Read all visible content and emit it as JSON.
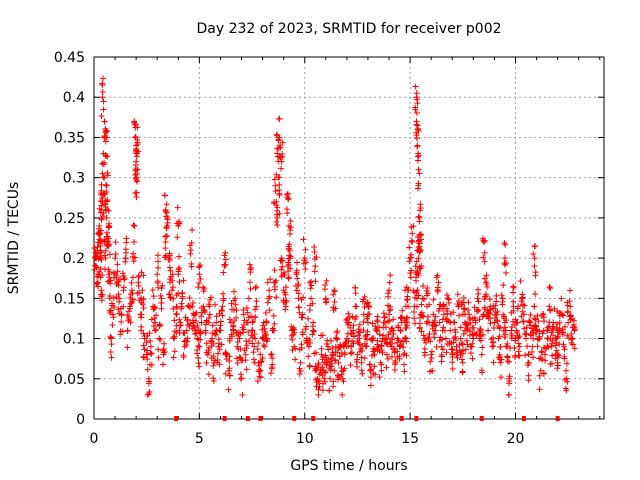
{
  "chart_data": {
    "type": "scatter",
    "title": "Day 232 of 2023, SRMTID for receiver p002",
    "xlabel": "GPS time / hours",
    "ylabel": "SRMTID / TECUs",
    "xlim": [
      0,
      24.2
    ],
    "ylim": [
      0,
      0.45
    ],
    "x_ticks": [
      0,
      5,
      10,
      15,
      20
    ],
    "x_tick_labels": [
      "0",
      "5",
      "10",
      "15",
      "20"
    ],
    "y_ticks": [
      0,
      0.05,
      0.1,
      0.15,
      0.2,
      0.25,
      0.3,
      0.35,
      0.4,
      0.45
    ],
    "y_tick_labels": [
      "0",
      "0.05",
      "0.1",
      "0.15",
      "0.2",
      "0.25",
      "0.3",
      "0.35",
      "0.4",
      "0.45"
    ],
    "grid": true,
    "marker": "plus",
    "color": "#ff0000",
    "legend": "none",
    "series": [
      {
        "name": "SRMTID",
        "x": [
          0.05,
          0.1,
          0.15,
          0.2,
          0.25,
          0.3,
          0.35,
          0.4,
          0.45,
          0.5,
          0.55,
          0.6,
          0.65,
          0.7,
          0.75,
          0.8,
          0.9,
          1.0,
          1.1,
          1.2,
          1.3,
          1.4,
          1.5,
          1.6,
          1.7,
          1.8,
          1.9,
          2.0,
          2.05,
          2.1,
          2.2,
          2.3,
          2.4,
          2.5,
          2.6,
          2.7,
          2.8,
          2.9,
          3.0,
          3.1,
          3.2,
          3.3,
          3.4,
          3.5,
          3.6,
          3.7,
          3.8,
          3.9,
          4.0,
          4.1,
          4.2,
          4.3,
          4.4,
          4.5,
          4.6,
          4.7,
          4.8,
          4.9,
          5.0,
          5.1,
          5.2,
          5.3,
          5.4,
          5.5,
          5.6,
          5.7,
          5.8,
          5.9,
          6.0,
          6.1,
          6.2,
          6.3,
          6.4,
          6.5,
          6.6,
          6.7,
          6.8,
          6.9,
          7.0,
          7.1,
          7.2,
          7.3,
          7.4,
          7.5,
          7.6,
          7.7,
          7.8,
          7.9,
          8.0,
          8.1,
          8.2,
          8.3,
          8.4,
          8.5,
          8.6,
          8.7,
          8.8,
          8.9,
          9.0,
          9.1,
          9.2,
          9.3,
          9.4,
          9.5,
          9.6,
          9.7,
          9.8,
          9.9,
          10.0,
          10.1,
          10.2,
          10.3,
          10.4,
          10.5,
          10.6,
          10.7,
          10.8,
          10.9,
          11.0,
          11.1,
          11.2,
          11.3,
          11.4,
          11.5,
          11.6,
          11.7,
          11.8,
          11.9,
          12.0,
          12.1,
          12.2,
          12.3,
          12.4,
          12.5,
          12.6,
          12.7,
          12.8,
          12.9,
          13.0,
          13.1,
          13.2,
          13.3,
          13.4,
          13.5,
          13.6,
          13.7,
          13.8,
          13.9,
          14.0,
          14.1,
          14.2,
          14.3,
          14.4,
          14.5,
          14.6,
          14.7,
          14.8,
          14.9,
          15.0,
          15.1,
          15.2,
          15.3,
          15.35,
          15.4,
          15.5,
          15.6,
          15.7,
          15.8,
          15.9,
          16.0,
          16.1,
          16.2,
          16.3,
          16.4,
          16.5,
          16.6,
          16.7,
          16.8,
          16.9,
          17.0,
          17.1,
          17.2,
          17.3,
          17.4,
          17.5,
          17.6,
          17.7,
          17.8,
          17.9,
          18.0,
          18.1,
          18.2,
          18.3,
          18.4,
          18.5,
          18.6,
          18.7,
          18.8,
          18.9,
          19.0,
          19.1,
          19.2,
          19.3,
          19.4,
          19.5,
          19.6,
          19.7,
          19.8,
          19.9,
          20.0,
          20.1,
          20.2,
          20.3,
          20.4,
          20.5,
          20.6,
          20.7,
          20.8,
          20.9,
          21.0,
          21.1,
          21.2,
          21.3,
          21.4,
          21.5,
          21.6,
          21.7,
          21.8,
          21.9,
          22.0,
          22.1,
          22.2,
          22.3,
          22.4,
          22.5,
          22.6,
          22.7,
          22.8,
          0.4,
          0.5,
          0.6,
          1.95,
          2.0,
          8.8,
          8.9,
          9.2,
          15.3,
          15.3,
          15.35,
          15.4,
          15.45,
          0.3,
          0.35,
          0.6,
          0.7,
          2.0,
          3.4,
          8.6,
          8.7,
          15.4,
          15.5,
          18.5,
          3.6,
          4.0,
          5.0,
          9.3,
          10.5,
          11.0,
          11.4,
          13.0,
          14.0,
          14.8,
          17.5,
          19.5,
          20.9,
          22.0
        ],
        "y": [
          0.2,
          0.19,
          0.21,
          0.18,
          0.24,
          0.2,
          0.16,
          0.27,
          0.33,
          0.28,
          0.2,
          0.25,
          0.22,
          0.18,
          0.15,
          0.1,
          0.13,
          0.2,
          0.17,
          0.15,
          0.13,
          0.16,
          0.2,
          0.11,
          0.14,
          0.16,
          0.22,
          0.3,
          0.33,
          0.17,
          0.13,
          0.16,
          0.1,
          0.08,
          0.05,
          0.09,
          0.14,
          0.12,
          0.18,
          0.1,
          0.15,
          0.08,
          0.22,
          0.25,
          0.17,
          0.16,
          0.1,
          0.13,
          0.18,
          0.12,
          0.15,
          0.09,
          0.11,
          0.14,
          0.21,
          0.12,
          0.13,
          0.1,
          0.09,
          0.12,
          0.14,
          0.11,
          0.08,
          0.13,
          0.1,
          0.07,
          0.12,
          0.09,
          0.11,
          0.14,
          0.19,
          0.08,
          0.06,
          0.12,
          0.11,
          0.15,
          0.09,
          0.1,
          0.05,
          0.13,
          0.08,
          0.12,
          0.17,
          0.11,
          0.09,
          0.14,
          0.07,
          0.06,
          0.1,
          0.09,
          0.12,
          0.15,
          0.08,
          0.11,
          0.17,
          0.25,
          0.28,
          0.2,
          0.16,
          0.14,
          0.19,
          0.23,
          0.11,
          0.09,
          0.18,
          0.15,
          0.07,
          0.13,
          0.2,
          0.1,
          0.09,
          0.15,
          0.12,
          0.06,
          0.05,
          0.04,
          0.08,
          0.06,
          0.07,
          0.09,
          0.05,
          0.08,
          0.06,
          0.1,
          0.07,
          0.09,
          0.05,
          0.08,
          0.1,
          0.12,
          0.09,
          0.11,
          0.14,
          0.08,
          0.1,
          0.07,
          0.13,
          0.09,
          0.12,
          0.06,
          0.1,
          0.08,
          0.11,
          0.09,
          0.07,
          0.1,
          0.12,
          0.08,
          0.13,
          0.09,
          0.11,
          0.07,
          0.1,
          0.09,
          0.12,
          0.08,
          0.1,
          0.14,
          0.2,
          0.22,
          0.14,
          0.18,
          0.16,
          0.2,
          0.13,
          0.15,
          0.1,
          0.14,
          0.12,
          0.08,
          0.13,
          0.11,
          0.16,
          0.12,
          0.09,
          0.13,
          0.1,
          0.15,
          0.11,
          0.08,
          0.12,
          0.09,
          0.14,
          0.1,
          0.07,
          0.12,
          0.11,
          0.13,
          0.09,
          0.1,
          0.12,
          0.15,
          0.1,
          0.08,
          0.13,
          0.17,
          0.11,
          0.14,
          0.09,
          0.12,
          0.13,
          0.1,
          0.07,
          0.15,
          0.12,
          0.09,
          0.05,
          0.11,
          0.14,
          0.1,
          0.12,
          0.09,
          0.15,
          0.13,
          0.1,
          0.07,
          0.12,
          0.09,
          0.14,
          0.11,
          0.1,
          0.06,
          0.13,
          0.08,
          0.11,
          0.14,
          0.09,
          0.12,
          0.1,
          0.07,
          0.11,
          0.13,
          0.09,
          0.06,
          0.12,
          0.14,
          0.1,
          0.11,
          0.4,
          0.37,
          0.35,
          0.35,
          0.34,
          0.35,
          0.32,
          0.28,
          0.4,
          0.37,
          0.34,
          0.31,
          0.25,
          0.23,
          0.26,
          0.29,
          0.24,
          0.32,
          0.26,
          0.29,
          0.33,
          0.22,
          0.21,
          0.22,
          0.2,
          0.24,
          0.18,
          0.2,
          0.19,
          0.15,
          0.16,
          0.13,
          0.16,
          0.14,
          0.13,
          0.2,
          0.19,
          0.11
        ],
        "baseline_markers_x": [
          3.9,
          6.2,
          7.3,
          7.9,
          9.5,
          10.4,
          14.6,
          15.3,
          18.4,
          20.4,
          22.0
        ]
      }
    ]
  }
}
